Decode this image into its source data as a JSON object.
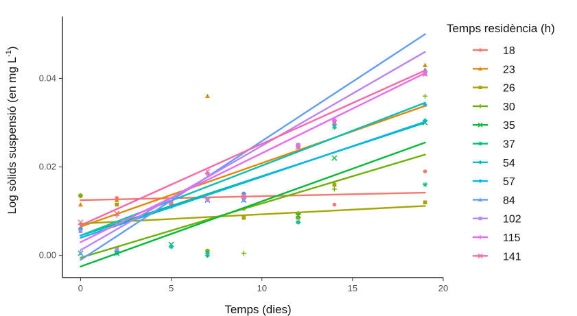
{
  "chart_data": {
    "type": "scatter",
    "xlabel": "Temps (dies)",
    "ylabel": "Log sòlids suspensió (en mg L",
    "ylabel_sup": "-1",
    "ylabel_close": ")",
    "xlim": [
      -1,
      20
    ],
    "ylim": [
      -0.005,
      0.054
    ],
    "xticks": [
      0,
      5,
      10,
      15,
      20
    ],
    "xtick_labels": [
      "0",
      "5",
      "10",
      "15",
      "20"
    ],
    "yticks": [
      0.0,
      0.02,
      0.04
    ],
    "ytick_labels": [
      "0.00",
      "0.02",
      "0.04"
    ],
    "grid": false,
    "legend": {
      "title": "Temps residència (h)",
      "position": "right"
    },
    "series": [
      {
        "name": "18",
        "color": "#F8766D",
        "marker": "circle",
        "points": [
          [
            0,
            0.0135
          ],
          [
            2,
            0.013
          ],
          [
            5,
            0.012
          ],
          [
            7,
            0.0185
          ],
          [
            9,
            0.0105
          ],
          [
            12,
            0.0095
          ],
          [
            14,
            0.0115
          ],
          [
            19,
            0.019
          ]
        ],
        "fit": [
          [
            0,
            0.0125
          ],
          [
            19,
            0.0142
          ]
        ]
      },
      {
        "name": "23",
        "color": "#E58700",
        "marker": "triangle",
        "points": [
          [
            0,
            0.0115
          ],
          [
            2,
            0.0125
          ],
          [
            5,
            0.012
          ],
          [
            7,
            0.036
          ],
          [
            9,
            0.0125
          ],
          [
            12,
            0.0095
          ],
          [
            14,
            0.016
          ],
          [
            19,
            0.043
          ]
        ],
        "fit": [
          [
            0,
            0.0065
          ],
          [
            19,
            0.0338
          ]
        ]
      },
      {
        "name": "26",
        "color": "#A3A500",
        "marker": "square",
        "points": [
          [
            0,
            0.0135
          ],
          [
            2,
            0.0115
          ],
          [
            5,
            0.012
          ],
          [
            7,
            0.001
          ],
          [
            9,
            0.0085
          ],
          [
            12,
            0.0085
          ],
          [
            14,
            0.016
          ],
          [
            19,
            0.012
          ]
        ],
        "fit": [
          [
            0,
            0.0072
          ],
          [
            19,
            0.0112
          ]
        ]
      },
      {
        "name": "30",
        "color": "#6BB100",
        "marker": "plus",
        "points": [
          [
            0,
            0.0135
          ],
          [
            2,
            0.001
          ],
          [
            5,
            0.002
          ],
          [
            7,
            0.001
          ],
          [
            9,
            0.0005
          ],
          [
            12,
            0.0095
          ],
          [
            14,
            0.015
          ],
          [
            19,
            0.036
          ]
        ],
        "fit": [
          [
            0,
            -0.0005
          ],
          [
            19,
            0.0228
          ]
        ]
      },
      {
        "name": "35",
        "color": "#00BA38",
        "marker": "cross",
        "points": [
          [
            0,
            0.0005
          ],
          [
            2,
            0.0005
          ],
          [
            5,
            0.0025
          ],
          [
            7,
            0.0125
          ],
          [
            9,
            0.0125
          ],
          [
            12,
            0.009
          ],
          [
            14,
            0.022
          ],
          [
            19,
            0.03
          ]
        ],
        "fit": [
          [
            0,
            -0.0025
          ],
          [
            19,
            0.0255
          ]
        ]
      },
      {
        "name": "37",
        "color": "#00BF7D",
        "marker": "asterisk",
        "points": [
          [
            0,
            0.006
          ],
          [
            2,
            0.001
          ],
          [
            5,
            0.002
          ],
          [
            7,
            0.0
          ],
          [
            9,
            0.0135
          ],
          [
            12,
            0.0075
          ],
          [
            14,
            0.029
          ],
          [
            19,
            0.016
          ]
        ],
        "fit": [
          [
            0,
            0.0045
          ],
          [
            19,
            0.03
          ]
        ]
      },
      {
        "name": "54",
        "color": "#00C0B8",
        "marker": "diamond",
        "points": [
          [
            0,
            0.006
          ],
          [
            2,
            0.0005
          ],
          [
            5,
            0.002
          ],
          [
            7,
            0.0005
          ],
          [
            9,
            0.013
          ],
          [
            12,
            0.0075
          ],
          [
            14,
            0.0295
          ],
          [
            19,
            0.0305
          ]
        ],
        "fit": [
          [
            0,
            0.0045
          ],
          [
            19,
            0.0345
          ]
        ]
      },
      {
        "name": "57",
        "color": "#00B4EF",
        "marker": "circle",
        "points": [
          [
            0,
            0.006
          ],
          [
            2,
            0.001
          ],
          [
            5,
            0.011
          ],
          [
            7,
            0.0125
          ],
          [
            9,
            0.014
          ],
          [
            12,
            0.0245
          ],
          [
            14,
            0.03
          ],
          [
            19,
            0.034
          ]
        ],
        "fit": [
          [
            0,
            0.004
          ],
          [
            19,
            0.0302
          ]
        ]
      },
      {
        "name": "84",
        "color": "#619CFF",
        "marker": "triangle",
        "points": [
          [
            0,
            0.0005
          ],
          [
            2,
            0.0015
          ],
          [
            5,
            0.0115
          ],
          [
            7,
            0.0125
          ],
          [
            9,
            0.0125
          ],
          [
            12,
            0.025
          ],
          [
            14,
            0.03
          ],
          [
            19,
            0.042
          ]
        ],
        "fit": [
          [
            0,
            -0.001
          ],
          [
            19,
            0.05
          ]
        ]
      },
      {
        "name": "102",
        "color": "#B983FF",
        "marker": "square",
        "points": [
          [
            0,
            0.0055
          ],
          [
            2,
            0.0015
          ],
          [
            5,
            0.0115
          ],
          [
            7,
            0.0125
          ],
          [
            9,
            0.013
          ],
          [
            12,
            0.025
          ],
          [
            14,
            0.0305
          ],
          [
            19,
            0.041
          ]
        ],
        "fit": [
          [
            0,
            0.0012
          ],
          [
            19,
            0.046
          ]
        ]
      },
      {
        "name": "115",
        "color": "#E76BF3",
        "marker": "plus",
        "points": [
          [
            0,
            0.007
          ],
          [
            2,
            0.009
          ],
          [
            5,
            0.0115
          ],
          [
            7,
            0.0185
          ],
          [
            9,
            0.0135
          ],
          [
            12,
            0.0245
          ],
          [
            14,
            0.0305
          ],
          [
            19,
            0.0415
          ]
        ],
        "fit": [
          [
            0,
            0.003
          ],
          [
            19,
            0.0412
          ]
        ]
      },
      {
        "name": "141",
        "color": "#FF67A4",
        "marker": "cross",
        "points": [
          [
            0,
            0.0075
          ],
          [
            2,
            0.0095
          ],
          [
            5,
            0.012
          ],
          [
            7,
            0.019
          ],
          [
            9,
            0.0135
          ],
          [
            12,
            0.0245
          ],
          [
            14,
            0.03
          ],
          [
            19,
            0.041
          ]
        ],
        "fit": [
          [
            0,
            0.0068
          ],
          [
            19,
            0.0418
          ]
        ]
      }
    ]
  }
}
